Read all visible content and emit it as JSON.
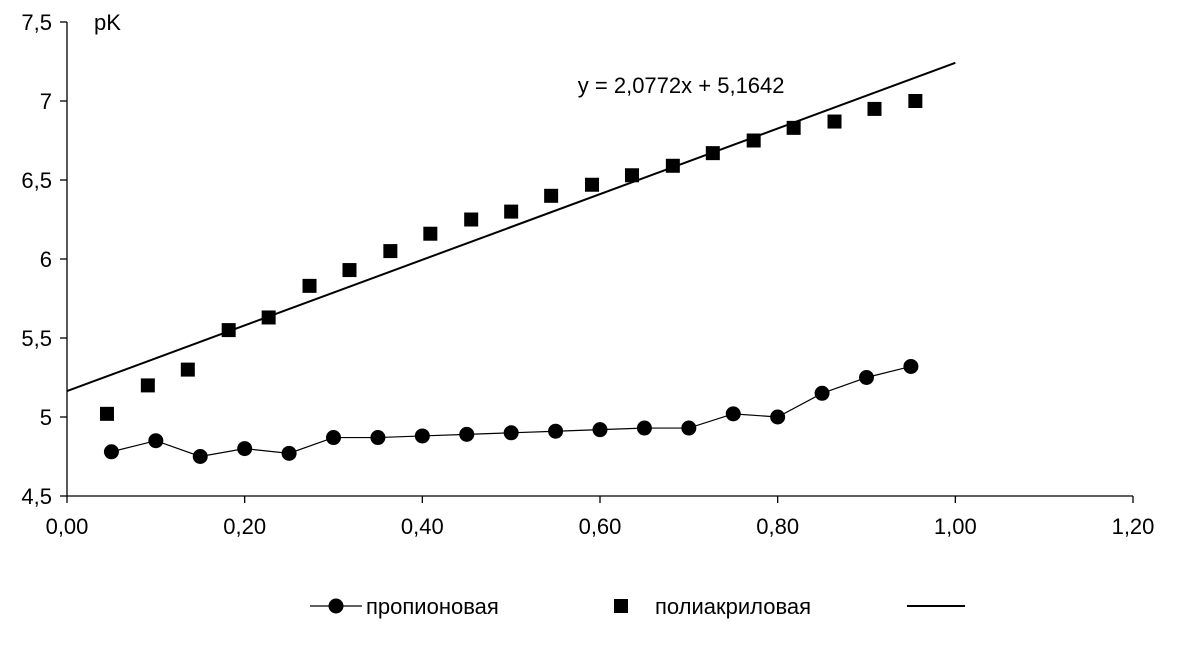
{
  "chart_data": {
    "type": "scatter",
    "title": "",
    "ylabel": "pK",
    "xlabel": "",
    "xlim": [
      0,
      1.2
    ],
    "ylim": [
      4.5,
      7.5
    ],
    "x_ticks": [
      0,
      0.2,
      0.4,
      0.6,
      0.8,
      1.0,
      1.2
    ],
    "x_tick_labels": [
      "0,00",
      "0,20",
      "0,40",
      "0,60",
      "0,80",
      "1,00",
      "1,20"
    ],
    "y_ticks": [
      4.5,
      5,
      5.5,
      6,
      6.5,
      7,
      7.5
    ],
    "y_tick_labels": [
      "4,5",
      "5",
      "5,5",
      "6",
      "6,5",
      "7",
      "7,5"
    ],
    "grid": false,
    "legend_position": "bottom",
    "series": [
      {
        "name": "пропионовая",
        "style": "line-circle",
        "color": "#000000",
        "x": [
          0.05,
          0.1,
          0.15,
          0.2,
          0.25,
          0.3,
          0.35,
          0.4,
          0.45,
          0.5,
          0.55,
          0.6,
          0.65,
          0.7,
          0.75,
          0.8,
          0.85,
          0.9,
          0.95
        ],
        "y": [
          4.78,
          4.85,
          4.75,
          4.8,
          4.77,
          4.87,
          4.87,
          4.88,
          4.89,
          4.9,
          4.91,
          4.92,
          4.93,
          4.93,
          5.02,
          5.0,
          5.15,
          5.25,
          5.32
        ]
      },
      {
        "name": "полиакриловая",
        "style": "square",
        "color": "#000000",
        "x": [
          0.045,
          0.091,
          0.136,
          0.182,
          0.227,
          0.273,
          0.318,
          0.364,
          0.409,
          0.455,
          0.5,
          0.545,
          0.591,
          0.636,
          0.682,
          0.727,
          0.773,
          0.818,
          0.864,
          0.909,
          0.955
        ],
        "y": [
          5.02,
          5.2,
          5.3,
          5.55,
          5.63,
          5.83,
          5.93,
          6.05,
          6.16,
          6.25,
          6.3,
          6.4,
          6.47,
          6.53,
          6.59,
          6.67,
          6.75,
          6.83,
          6.87,
          6.95,
          7.0
        ]
      },
      {
        "name": "",
        "style": "trendline",
        "color": "#000000",
        "slope": 2.0772,
        "intercept": 5.1642,
        "x_range": [
          0,
          1.0
        ]
      }
    ],
    "annotations": [
      {
        "text": "y = 2,0772x + 5,1642",
        "x": 0.575,
        "y": 7.1
      }
    ]
  }
}
